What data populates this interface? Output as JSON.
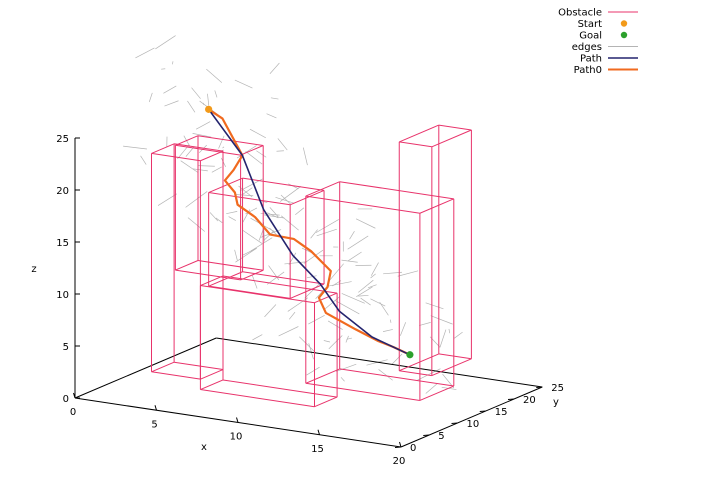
{
  "chart_data": {
    "type": "line",
    "title": "",
    "xlabel": "x",
    "ylabel": "y",
    "zlabel": "z",
    "xlim": [
      0,
      20
    ],
    "ylim": [
      0,
      25
    ],
    "zlim": [
      0,
      25
    ],
    "x_ticks": [
      "0",
      "5",
      "10",
      "15",
      "20"
    ],
    "y_ticks": [
      "0",
      "5",
      "10",
      "15",
      "20",
      "25"
    ],
    "z_ticks": [
      "0",
      "5",
      "10",
      "15",
      "20",
      "25"
    ],
    "legend": {
      "placement": "top-right",
      "entries": [
        {
          "label": "Obstacle",
          "color": "#e8336b",
          "style": "line"
        },
        {
          "label": "Start",
          "color": "#f29a1a",
          "style": "point"
        },
        {
          "label": "Goal",
          "color": "#2ca02c",
          "style": "point"
        },
        {
          "label": "edges",
          "color": "#b4b4b4",
          "style": "line"
        },
        {
          "label": "Path",
          "color": "#24246e",
          "style": "line"
        },
        {
          "label": "Path0",
          "color": "#f06a1f",
          "style": "line"
        }
      ]
    },
    "obstacles": [
      {
        "x": [
          4,
          7
        ],
        "y": [
          2,
          6
        ],
        "z": [
          3,
          24
        ]
      },
      {
        "x": [
          7,
          14
        ],
        "y": [
          2,
          6
        ],
        "z": [
          2,
          12
        ]
      },
      {
        "x": [
          2,
          6
        ],
        "y": [
          12,
          16
        ],
        "z": [
          10,
          22
        ]
      },
      {
        "x": [
          3,
          8
        ],
        "y": [
          15,
          21
        ],
        "z": [
          8,
          17
        ]
      },
      {
        "x": [
          10,
          17
        ],
        "y": [
          12,
          18
        ],
        "z": [
          1,
          19
        ]
      },
      {
        "x": [
          14,
          16
        ],
        "y": [
          17,
          24
        ],
        "z": [
          2,
          24
        ]
      }
    ],
    "start": {
      "x": 3,
      "y": 15,
      "z": 25
    },
    "goal": {
      "x": 15,
      "y": 16,
      "z": 4
    },
    "series": [
      {
        "name": "Path",
        "points": [
          [
            3,
            15,
            25
          ],
          [
            5,
            15.2,
            21
          ],
          [
            6.2,
            15.5,
            16
          ],
          [
            8,
            15.5,
            12
          ],
          [
            9.5,
            16,
            9.5
          ],
          [
            10.5,
            16.5,
            7
          ],
          [
            12.5,
            16.5,
            5
          ],
          [
            15,
            16,
            4
          ]
        ]
      },
      {
        "name": "Path0",
        "points": [
          [
            3,
            15,
            25
          ],
          [
            3.5,
            16,
            24
          ],
          [
            5,
            15.2,
            21
          ],
          [
            4.6,
            14.8,
            19.6
          ],
          [
            4,
            15,
            18.4
          ],
          [
            4.4,
            15.6,
            17.2
          ],
          [
            4.5,
            15.8,
            16
          ],
          [
            5.5,
            16,
            15
          ],
          [
            6.5,
            15.8,
            13.6
          ],
          [
            7.8,
            16.2,
            13.4
          ],
          [
            8.8,
            16.4,
            12.4
          ],
          [
            9.8,
            17,
            10.6
          ],
          [
            9.6,
            17,
            9
          ],
          [
            9,
            17.2,
            7.8
          ],
          [
            9.5,
            17,
            6.5
          ],
          [
            11.5,
            16.5,
            5.5
          ],
          [
            13,
            16.2,
            4.8
          ],
          [
            14,
            16,
            4.5
          ],
          [
            15,
            16,
            4
          ]
        ]
      }
    ],
    "edges_shown": true
  }
}
